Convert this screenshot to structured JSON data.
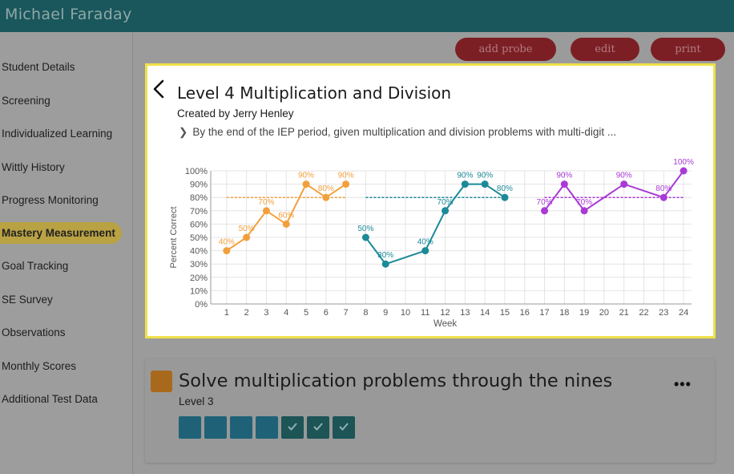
{
  "app": {
    "student_name": "Michael Faraday"
  },
  "sidebar": {
    "items": [
      {
        "label": "Student Details",
        "active": false
      },
      {
        "label": "Screening",
        "active": false
      },
      {
        "label": "Individualized Learning",
        "active": false
      },
      {
        "label": "Wittly History",
        "active": false
      },
      {
        "label": "Progress Monitoring",
        "active": false
      },
      {
        "label": "Mastery Measurement",
        "active": true
      },
      {
        "label": "Goal Tracking",
        "active": false
      },
      {
        "label": "SE Survey",
        "active": false
      },
      {
        "label": "Observations",
        "active": false
      },
      {
        "label": "Monthly Scores",
        "active": false
      },
      {
        "label": "Additional Test Data",
        "active": false
      }
    ]
  },
  "toolbar": {
    "add_probe": "add probe",
    "edit": "edit",
    "print": "print"
  },
  "panel": {
    "title": "Level 4 Multiplication and Division",
    "created_by": "Created by Jerry Henley",
    "goal": "By the end of the IEP period, given multiplication and division problems with multi-digit ..."
  },
  "chart_data": {
    "type": "line",
    "xlabel": "Week",
    "ylabel": "Percent Correct",
    "ylim": [
      0,
      100
    ],
    "y_ticks": [
      "0%",
      "10%",
      "20%",
      "30%",
      "40%",
      "50%",
      "60%",
      "70%",
      "80%",
      "90%",
      "100%"
    ],
    "x_ticks": [
      1,
      2,
      3,
      4,
      5,
      6,
      7,
      8,
      9,
      10,
      11,
      12,
      13,
      14,
      15,
      16,
      17,
      18,
      19,
      20,
      21,
      22,
      23,
      24
    ],
    "grid": true,
    "series": [
      {
        "color": "#f2a03d",
        "goal": 80,
        "goal_range": [
          1,
          7
        ],
        "points": [
          {
            "x": 1,
            "y": 40,
            "label": "40%"
          },
          {
            "x": 2,
            "y": 50,
            "label": "50%"
          },
          {
            "x": 3,
            "y": 70,
            "label": "70%"
          },
          {
            "x": 4,
            "y": 60,
            "label": "60%"
          },
          {
            "x": 5,
            "y": 90,
            "label": "90%"
          },
          {
            "x": 6,
            "y": 80,
            "label": "80%"
          },
          {
            "x": 7,
            "y": 90,
            "label": "90%"
          }
        ]
      },
      {
        "color": "#1b8a98",
        "goal": 80,
        "goal_range": [
          8,
          15
        ],
        "points": [
          {
            "x": 8,
            "y": 50,
            "label": "50%"
          },
          {
            "x": 9,
            "y": 30,
            "label": "30%"
          },
          {
            "x": 11,
            "y": 40,
            "label": "40%"
          },
          {
            "x": 12,
            "y": 70,
            "label": "70%"
          },
          {
            "x": 13,
            "y": 90,
            "label": "90%"
          },
          {
            "x": 14,
            "y": 90,
            "label": "90%"
          },
          {
            "x": 15,
            "y": 80,
            "label": "80%"
          }
        ]
      },
      {
        "color": "#a93ad6",
        "goal": 80,
        "goal_range": [
          17,
          24
        ],
        "points": [
          {
            "x": 17,
            "y": 70,
            "label": "70%"
          },
          {
            "x": 18,
            "y": 90,
            "label": "90%"
          },
          {
            "x": 19,
            "y": 70,
            "label": "70%"
          },
          {
            "x": 21,
            "y": 90,
            "label": "90%"
          },
          {
            "x": 23,
            "y": 80,
            "label": "80%"
          },
          {
            "x": 24,
            "y": 100,
            "label": "100%"
          }
        ]
      }
    ]
  },
  "card": {
    "title": "Solve multiplication problems through the nines",
    "level": "Level 3",
    "more_icon": "more-horizontal-icon",
    "progress_boxes": [
      false,
      false,
      false,
      false,
      true,
      true,
      true
    ],
    "swatch_color": "#a8691d"
  }
}
